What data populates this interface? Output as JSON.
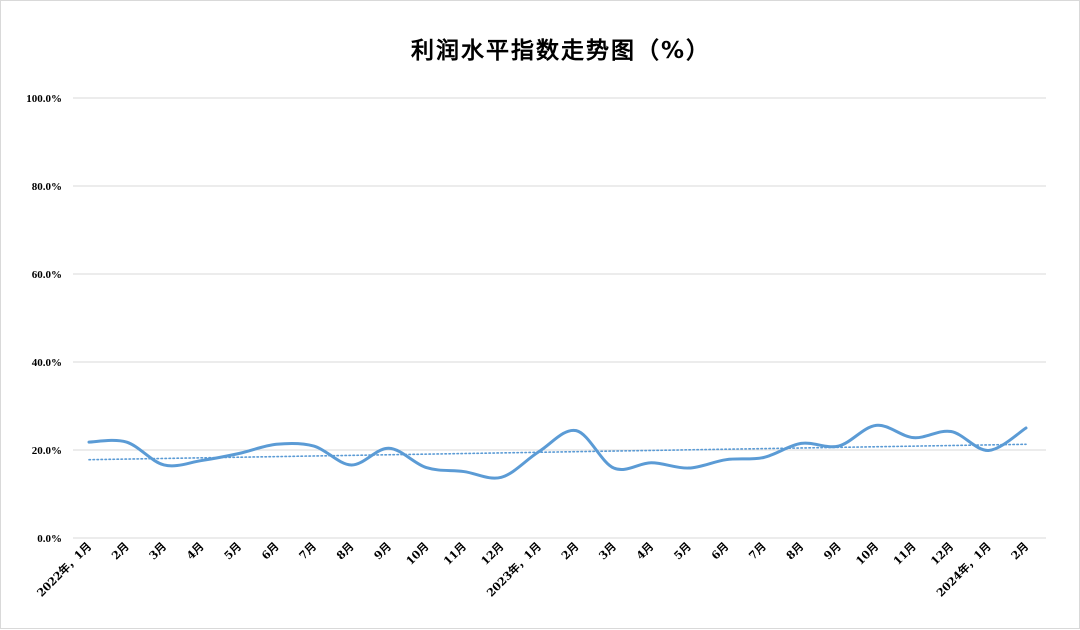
{
  "title": "利润水平指数走势图（%）",
  "chart_data": {
    "type": "line",
    "title": "利润水平指数走势图（%）",
    "xlabel": "",
    "ylabel": "",
    "ylim": [
      0,
      100
    ],
    "yticks": [
      "0.0%",
      "20.0%",
      "40.0%",
      "60.0%",
      "80.0%",
      "100.0%"
    ],
    "grid": true,
    "categories": [
      "2022年，1月",
      "2月",
      "3月",
      "4月",
      "5月",
      "6月",
      "7月",
      "8月",
      "9月",
      "10月",
      "11月",
      "12月",
      "2023年，1月",
      "2月",
      "3月",
      "4月",
      "5月",
      "6月",
      "7月",
      "8月",
      "9月",
      "10月",
      "11月",
      "12月",
      "2024年，1月",
      "2月"
    ],
    "series": [
      {
        "values": [
          21.8,
          21.8,
          16.6,
          17.6,
          19.2,
          21.3,
          20.9,
          16.6,
          20.4,
          16.0,
          15.1,
          13.8,
          19.6,
          24.4,
          15.9,
          17.1,
          15.9,
          17.8,
          18.3,
          21.5,
          20.9,
          25.6,
          22.8,
          24.2,
          19.9,
          25.0
        ],
        "color": "#5b9bd5"
      }
    ],
    "trendline": {
      "type": "linear",
      "style": "dotted",
      "color": "#5b9bd5",
      "start": 17.8,
      "end": 21.3
    }
  }
}
